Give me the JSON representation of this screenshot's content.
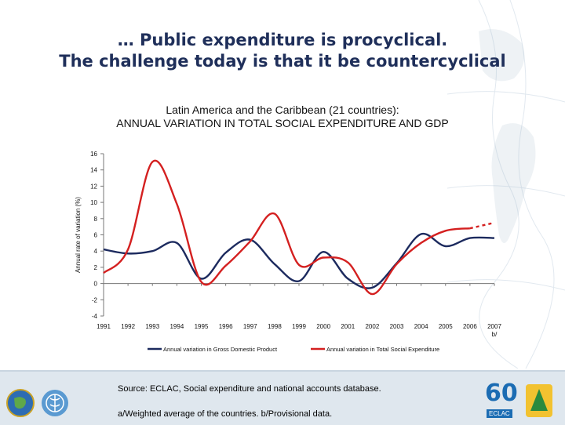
{
  "slide": {
    "title_line1": "… Public expenditure is procyclical.",
    "title_line2": "The challenge today is that it be countercyclical"
  },
  "chart_data": {
    "type": "line",
    "title_line1": "Latin America and the Caribbean (21 countries):",
    "title_line2": "ANNUAL VARIATION IN  TOTAL SOCIAL EXPENDITURE AND GDP",
    "ylabel": "Annual rate of variation (%)",
    "xlabel": "",
    "ylim": [
      -4,
      16
    ],
    "yticks": [
      16,
      14,
      12,
      10,
      8,
      6,
      4,
      2,
      0,
      -2,
      -4
    ],
    "categories": [
      "1991",
      "1992",
      "1993",
      "1994",
      "1995",
      "1996",
      "1997",
      "1998",
      "1999",
      "2000",
      "2001",
      "2002",
      "2003",
      "2004",
      "2005",
      "2006",
      "2007"
    ],
    "category_sublabels": [
      "",
      "",
      "",
      "",
      "",
      "",
      "",
      "",
      "",
      "",
      "",
      "",
      "",
      "",
      "",
      "",
      "b/"
    ],
    "series": [
      {
        "name": "Annual variation in Gross Domestic Product",
        "color": "#1c2a5e",
        "values": [
          4.2,
          3.7,
          4.0,
          5.0,
          0.6,
          3.8,
          5.4,
          2.4,
          0.3,
          3.9,
          0.6,
          -0.5,
          2.5,
          6.1,
          4.6,
          5.6,
          5.6
        ]
      },
      {
        "name": "Annual variation in Total Social Expenditure",
        "color": "#d42020",
        "values": [
          1.3,
          4.2,
          15.0,
          9.8,
          0.2,
          2.2,
          5.2,
          8.6,
          2.3,
          3.2,
          2.6,
          -1.3,
          2.4,
          5.0,
          6.5,
          6.8,
          7.5
        ],
        "dashed_from_index": 15
      }
    ],
    "legend_position": "bottom",
    "grid": false
  },
  "footer": {
    "source": "Source: ECLAC, Social expenditure and national accounts database.",
    "note": "a/Weighted average of the countries.  b/Provisional data.",
    "logo_text_1": "60",
    "logo_text_2": "ECLAC"
  }
}
